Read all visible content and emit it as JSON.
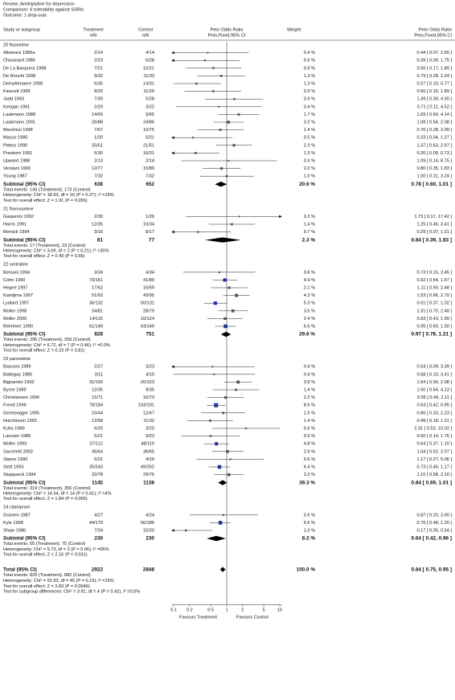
{
  "header": {
    "review": "Review:  Amitriptyline for depression",
    "comparison": "Comparison:  6 tolerability against SSRIs",
    "outcome": "Outcome:  1 drop-outs"
  },
  "columns": {
    "study": "Study or subgroup",
    "treatment": "Treatment",
    "treatment_n": "n/N",
    "control": "Control",
    "control_n": "n/N",
    "plot": "Peto Odds Ratio",
    "plot_sub": "Peto,Fixed,95% CI",
    "weight": "Weight",
    "effect": "Peto Odds Ratio",
    "effect_sub": "Peto,Fixed,95% CI"
  },
  "axis": {
    "scale": "log",
    "xlim": [
      0.1,
      10
    ],
    "xticks": [
      0.1,
      0.2,
      0.5,
      1,
      2,
      5,
      10
    ],
    "left_label": "Favours Treatment",
    "right_label": "Favours Control"
  },
  "groups": [
    {
      "title": "20 fluoxetine",
      "studies": [
        [
          "Altamura 1989a",
          "2/14",
          "4/14",
          0.4,
          "0.4 %",
          0.44,
          0.07,
          2.6,
          "0.44 [ 0.07, 2.60 ]"
        ],
        [
          "Chouinard 1985",
          "2/23",
          "6/28",
          0.6,
          "0.6 %",
          0.39,
          0.09,
          1.75,
          "0.39 [ 0.09, 1.75 ]"
        ],
        [
          "De La Barquera 1998",
          "7/21",
          "10/21",
          0.9,
          "0.9 %",
          0.56,
          0.17,
          1.89,
          "0.56 [ 0.17, 1.89 ]"
        ],
        [
          "De Ronchi 1998",
          "9/32",
          "11/33",
          1.3,
          "1.3 %",
          0.79,
          0.28,
          2.24,
          "0.79 [ 0.28, 2.24 ]"
        ],
        [
          "Demyttenaere 1998",
          "6/35",
          "14/31",
          1.3,
          "1.3 %",
          0.27,
          0.1,
          0.77,
          "0.27 [ 0.10, 0.77 ]"
        ],
        [
          "Fawcett 1989",
          "8/20",
          "11/20",
          0.9,
          "0.9 %",
          0.56,
          0.16,
          1.89,
          "0.56 [ 0.16, 1.89 ]"
        ],
        [
          "Judd 1993",
          "7/30",
          "5/28",
          0.9,
          "0.9 %",
          1.39,
          0.39,
          4.9,
          "1.39 [ 0.39, 4.90 ]"
        ],
        [
          "Keegan 1991",
          "2/20",
          "3/22",
          0.4,
          "0.4 %",
          0.71,
          0.11,
          4.52,
          "0.71 [ 0.11, 4.52 ]"
        ],
        [
          "Laakmann 1988",
          "14/65",
          "9/65",
          1.7,
          "1.7 %",
          1.69,
          0.69,
          4.14,
          "1.69 [ 0.69, 4.14 ]"
        ],
        [
          "Laakmann 1991",
          "26/88",
          "24/86",
          3.2,
          "3.2 %",
          1.08,
          0.56,
          2.08,
          "1.08 [ 0.56, 2.08 ]"
        ],
        [
          "Marchesi 1998",
          "7/67",
          "10/75",
          1.4,
          "1.4 %",
          0.76,
          0.28,
          2.09,
          "0.76 [ 0.28, 2.09 ]"
        ],
        [
          "Masco 1985",
          "1/20",
          "5/21",
          0.5,
          "0.5 %",
          0.23,
          0.04,
          1.27,
          "0.23 [ 0.04, 1.27 ]"
        ],
        [
          "Peters 1990",
          "25/51",
          "21/51",
          2.3,
          "2.3 %",
          1.37,
          0.63,
          2.97,
          "1.37 [ 0.63, 2.97 ]"
        ],
        [
          "Preskorn 1991",
          "6/30",
          "16/31",
          1.3,
          "1.3 %",
          0.26,
          0.09,
          0.73,
          "0.26 [ 0.09, 0.73 ]"
        ],
        [
          "Upward 1988",
          "2/13",
          "2/14",
          0.3,
          "0.3 %",
          1.09,
          0.14,
          8.75,
          "1.09 [ 0.14, 8.75 ]"
        ],
        [
          "Versiani 1999",
          "12/77",
          "15/80",
          2.0,
          "2.0 %",
          0.8,
          0.35,
          1.83,
          "0.80 [ 0.35, 1.83 ]"
        ],
        [
          "Young 1987",
          "7/32",
          "7/32",
          1.0,
          "1.0 %",
          1.0,
          0.31,
          3.24,
          "1.00 [ 0.31, 3.24 ]"
        ]
      ],
      "subtotal": [
        "Subtotal (95% CI)",
        638,
        652,
        20.6,
        "20.6 %",
        0.78,
        0.6,
        1.01,
        "0.78 [ 0.60, 1.01 ]"
      ],
      "stats": [
        "Total events: 143 (Treatment), 173 (Control)",
        "Heterogeneity: Chi² = 18.93, df = 16 (P = 0.27); I² =15%",
        "Test for overall effect: Z = 1.91 (P = 0.056)"
      ]
    },
    {
      "title": "21 fluvoxamine",
      "studies": [
        [
          "Gasperini 1992",
          "2/30",
          "1/26",
          0.3,
          "0.3 %",
          1.73,
          0.17,
          17.42,
          "1.73 [ 0.17, 17.42 ]"
        ],
        [
          "Harris 1991",
          "12/35",
          "10/34",
          1.4,
          "1.4 %",
          1.25,
          0.46,
          3.41,
          "1.25 [ 0.46, 3.41 ]"
        ],
        [
          "Remick 1994",
          "3/16",
          "8/17",
          0.7,
          "0.7 %",
          0.29,
          0.07,
          1.21,
          "0.29 [ 0.07, 1.21 ]"
        ]
      ],
      "subtotal": [
        "Subtotal (95% CI)",
        81,
        77,
        2.3,
        "2.3 %",
        0.84,
        0.39,
        1.83,
        "0.84 [ 0.39, 1.83 ]"
      ],
      "stats": [
        "Total events: 17 (Treatment), 19 (Control)",
        "Heterogeneity: Chi² = 3.09, df = 2 (P = 0.21); I² =35%",
        "Test for overall effect: Z = 0.43 (P = 0.66)"
      ]
    },
    {
      "title": "22 sertraline",
      "studies": [
        [
          "Bersani 1994",
          "3/34",
          "4/34",
          0.6,
          "0.6 %",
          0.73,
          0.15,
          3.45,
          "0.73 [ 0.15, 3.45 ]"
        ],
        [
          "Cohn 1990",
          "79/161",
          "41/80",
          4.9,
          "4.9 %",
          0.92,
          0.54,
          1.57,
          "0.92 [ 0.54, 1.57 ]"
        ],
        [
          "Hegerl 1997",
          "17/62",
          "15/59",
          2.1,
          "2.1 %",
          1.11,
          0.5,
          2.48,
          "1.11 [ 0.50, 2.48 ]"
        ],
        [
          "Kamijima 1997",
          "51/93",
          "42/95",
          4.3,
          "4.3 %",
          1.53,
          0.86,
          2.7,
          "1.53 [ 0.86, 2.70 ]"
        ],
        [
          "Lydiard 1997",
          "36/132",
          "50/131",
          5.3,
          "5.3 %",
          0.61,
          0.37,
          1.02,
          "0.61 [ 0.37, 1.02 ]"
        ],
        [
          "Moller 1998",
          "34/81",
          "28/79",
          3.5,
          "3.5 %",
          1.31,
          0.7,
          2.48,
          "1.31 [ 0.70, 2.48 ]"
        ],
        [
          "Moller 2000",
          "14/116",
          "16/124",
          2.4,
          "2.4 %",
          0.93,
          0.43,
          1.99,
          "0.93 [ 0.43, 1.99 ]"
        ],
        [
          "Reimherr 1990",
          "61/149",
          "63/149",
          6.6,
          "6.6 %",
          0.95,
          0.6,
          1.5,
          "0.95 [ 0.60, 1.50 ]"
        ]
      ],
      "subtotal": [
        "Subtotal (95% CI)",
        828,
        751,
        29.6,
        "29.6 %",
        0.97,
        0.78,
        1.21,
        "0.97 [ 0.78, 1.21 ]"
      ],
      "stats": [
        "Total events: 295 (Treatment), 259 (Control)",
        "Heterogeneity: Chi² = 6.72, df = 7 (P = 0.46); I² =0.0%",
        "Test for overall effect: Z = 0.23 (P = 0.81)"
      ]
    },
    {
      "title": "23 paroxetine",
      "studies": [
        [
          "Bascara 1989",
          "2/27",
          "3/23",
          0.4,
          "0.4 %",
          0.54,
          0.09,
          3.39,
          "0.54 [ 0.09, 3.39 ]"
        ],
        [
          "Battegay 1985",
          "3/11",
          "4/10",
          0.4,
          "0.4 %",
          0.58,
          0.1,
          3.41,
          "0.58 [ 0.10, 3.41 ]"
        ],
        [
          "Bignamini 1992",
          "31/156",
          "20/153",
          3.9,
          "3.9 %",
          1.64,
          0.9,
          2.98,
          "1.64 [ 0.90, 2.98 ]"
        ],
        [
          "Byrne 1989",
          "12/35",
          "9/35",
          1.4,
          "1.4 %",
          1.5,
          0.54,
          4.13,
          "1.50 [ 0.54, 4.13 ]"
        ],
        [
          "Christiansen 1996",
          "15/71",
          "16/73",
          2.2,
          "2.2 %",
          0.95,
          0.43,
          2.11,
          "0.95 [ 0.43, 2.11 ]"
        ],
        [
          "Freed 1999",
          "78/184",
          "103/191",
          8.5,
          "8.5 %",
          0.63,
          0.42,
          0.95,
          "0.63 [ 0.42, 0.95 ]"
        ],
        [
          "Geretsegger 1995",
          "10/44",
          "12/47",
          1.5,
          "1.5 %",
          0.86,
          0.33,
          2.23,
          "0.86 [ 0.33, 2.23 ]"
        ],
        [
          "Hutchinson 1992",
          "12/58",
          "11/32",
          1.4,
          "1.4 %",
          0.49,
          0.18,
          1.31,
          "0.49 [ 0.18, 1.31 ]"
        ],
        [
          "Kuhs 1989",
          "6/20",
          "3/20",
          0.6,
          "0.6 %",
          2.31,
          0.53,
          10.02,
          "2.31 [ 0.53, 10.02 ]"
        ],
        [
          "Laursen 1985",
          "5/21",
          "9/23",
          0.9,
          "0.9 %",
          0.5,
          0.14,
          1.76,
          "0.50 [ 0.14, 1.76 ]"
        ],
        [
          "Moller 1993",
          "37/112",
          "48/110",
          4.8,
          "4.8 %",
          0.64,
          0.37,
          1.1,
          "0.64 [ 0.37, 1.10 ]"
        ],
        [
          "Sacchetti 2002",
          "36/64",
          "36/65",
          2.9,
          "2.9 %",
          1.04,
          0.52,
          2.07,
          "1.04 [ 0.52, 2.07 ]"
        ],
        [
          "Staner 1995",
          "5/21",
          "4/19",
          0.6,
          "0.6 %",
          1.17,
          0.27,
          5.06,
          "1.17 [ 0.27, 5.06 ]"
        ],
        [
          "Stott 1993",
          "35/243",
          "49/262",
          6.4,
          "6.4 %",
          0.73,
          0.46,
          1.17,
          "0.73 [ 0.46, 1.17 ]"
        ],
        [
          "Stuppaeck 1994",
          "32/78",
          "29/75",
          3.3,
          "3.3 %",
          1.1,
          0.58,
          2.1,
          "1.10 [ 0.58, 2.10 ]"
        ]
      ],
      "subtotal": [
        "Subtotal (95% CI)",
        1145,
        1138,
        39.3,
        "39.3 %",
        0.84,
        0.69,
        1.01,
        "0.84 [ 0.69, 1.01 ]"
      ],
      "stats": [
        "Total events: 319 (Treatment), 356 (Control)",
        "Heterogeneity: Chi² = 14.54, df = 14 (P = 0.41); I² =4%",
        "Test for overall effect: Z = 1.84 (P = 0.065)"
      ]
    },
    {
      "title": "24 citalopram",
      "studies": [
        [
          "Gravem 1987",
          "4/27",
          "4/24",
          0.6,
          "0.6 %",
          0.87,
          0.2,
          3.9,
          "0.87 [ 0.20, 3.90 ]"
        ],
        [
          "Kyle 1998",
          "44/179",
          "56/186",
          6.6,
          "6.6 %",
          0.76,
          0.48,
          1.2,
          "0.76 [ 0.48, 1.20 ]"
        ],
        [
          "Shaw 1986",
          "7/24",
          "15/20",
          1.0,
          "1.0 %",
          0.17,
          0.05,
          0.54,
          "0.17 [ 0.05, 0.54 ]"
        ]
      ],
      "subtotal": [
        "Subtotal (95% CI)",
        230,
        230,
        8.2,
        "8.2 %",
        0.64,
        0.42,
        0.96,
        "0.64 [ 0.42, 0.96 ]"
      ],
      "stats": [
        "Total events: 55 (Treatment), 75 (Control)",
        "Heterogeneity: Chi² = 5.73, df = 2 (P = 0.06); I² =65%",
        "Test for overall effect: Z = 2.16 (P = 0.031)"
      ]
    }
  ],
  "total": {
    "row": [
      "Total (95% CI)",
      2922,
      2848,
      100.0,
      "100.0 %",
      0.84,
      0.75,
      0.95,
      "0.84 [ 0.75, 0.95 ]"
    ],
    "stats": [
      "Total events: 829 (Treatment), 882 (Control)",
      "Heterogeneity: Chi² = 52.93, df = 45 (P = 0.19); I² =15%",
      "Test for overall effect: Z = 2.83 (P = 0.0046)",
      "Test for subgroup differences: Chi² = 3.91, df = 4 (P = 0.42), I² =0.0%"
    ]
  }
}
